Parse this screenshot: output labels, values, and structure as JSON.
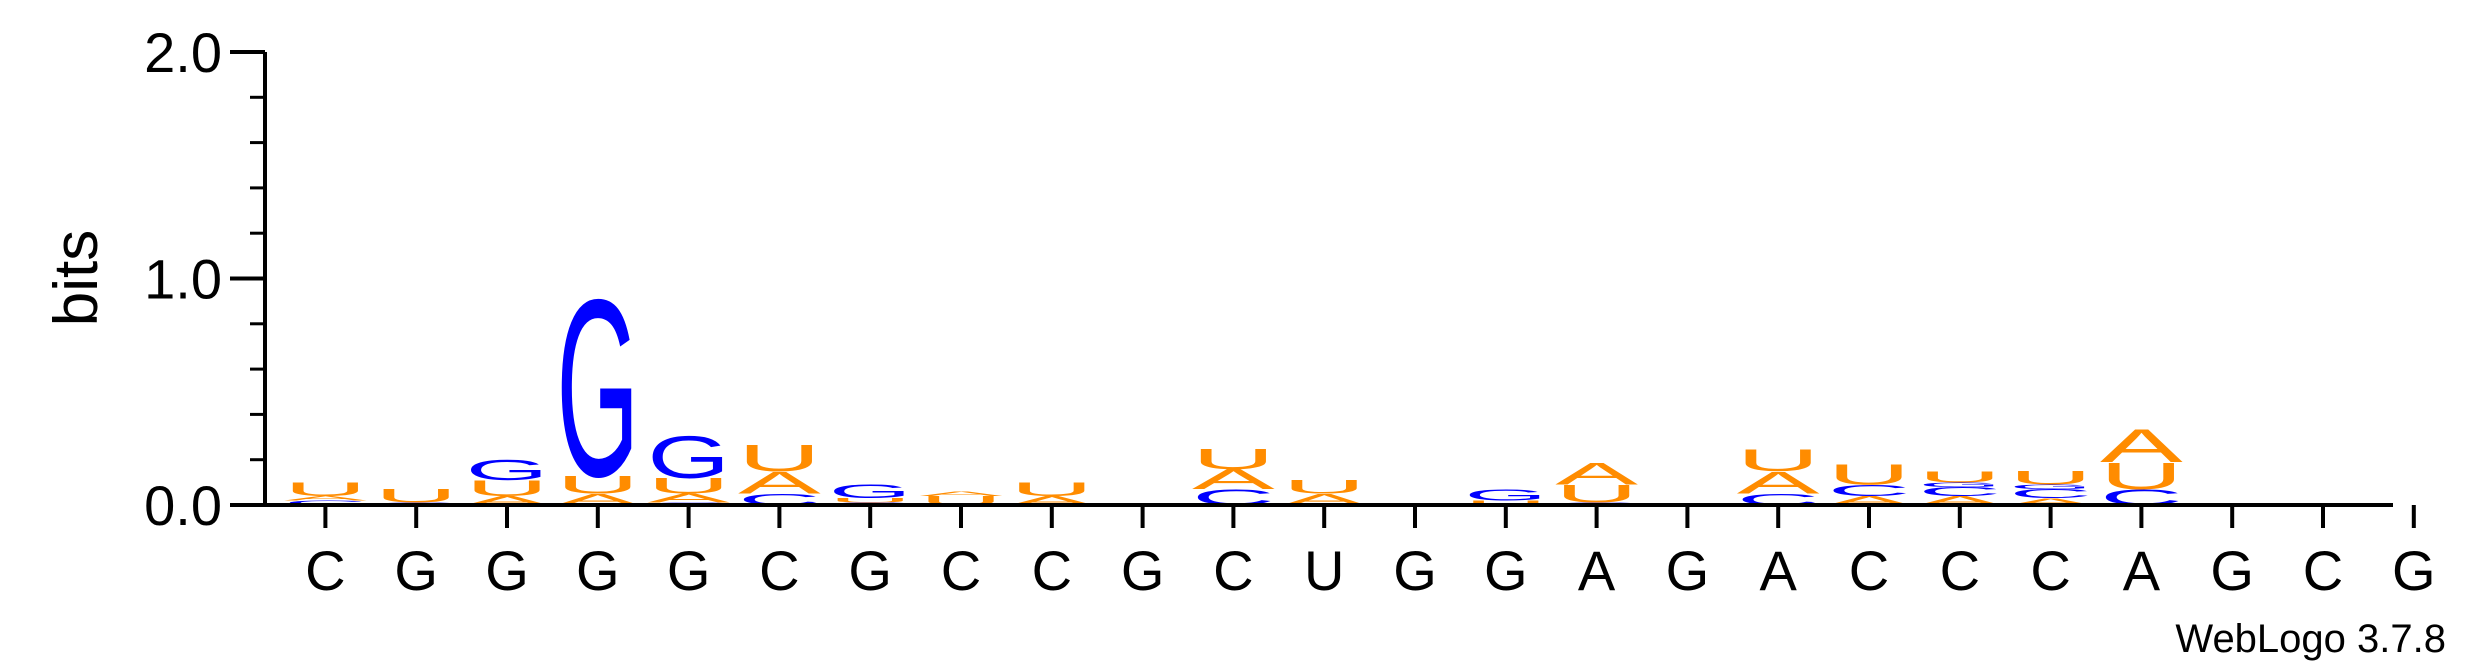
{
  "chart_data": {
    "type": "sequence-logo",
    "ylabel": "bits",
    "ylim": [
      0,
      2.0
    ],
    "yticks": [
      "0.0",
      "1.0",
      "2.0"
    ],
    "consensus": [
      "C",
      "G",
      "G",
      "G",
      "G",
      "C",
      "G",
      "C",
      "C",
      "G",
      "C",
      "U",
      "G",
      "G",
      "A",
      "G",
      "A",
      "C",
      "C",
      "C",
      "A",
      "G",
      "C",
      "G"
    ],
    "colors": {
      "A": "#ff8c00",
      "U": "#ff8c00",
      "G": "#0000ff",
      "C": "#0000ff"
    },
    "stacks": [
      [
        [
          "C",
          0.02
        ],
        [
          "A",
          0.02
        ],
        [
          "U",
          0.06
        ]
      ],
      [
        [
          "C",
          0.01
        ],
        [
          "U",
          0.06
        ]
      ],
      [
        [
          "A",
          0.04
        ],
        [
          "U",
          0.07
        ],
        [
          "G",
          0.09
        ]
      ],
      [
        [
          "A",
          0.05
        ],
        [
          "U",
          0.08
        ],
        [
          "G",
          0.8
        ]
      ],
      [
        [
          "C",
          0.01
        ],
        [
          "A",
          0.04
        ],
        [
          "U",
          0.07
        ],
        [
          "G",
          0.19
        ]
      ],
      [
        [
          "C",
          0.05
        ],
        [
          "A",
          0.1
        ],
        [
          "U",
          0.12
        ]
      ],
      [
        [
          "C",
          0.01
        ],
        [
          "U",
          0.02
        ],
        [
          "G",
          0.06
        ]
      ],
      [
        [
          "U",
          0.04
        ],
        [
          "A",
          0.02
        ]
      ],
      [
        [
          "A",
          0.04
        ],
        [
          "U",
          0.06
        ]
      ],
      [],
      [
        [
          "C",
          0.07
        ],
        [
          "A",
          0.09
        ],
        [
          "U",
          0.09
        ]
      ],
      [
        [
          "A",
          0.05
        ],
        [
          "U",
          0.06
        ]
      ],
      [],
      [
        [
          "U",
          0.02
        ],
        [
          "G",
          0.05
        ]
      ],
      [
        [
          "C",
          0.01
        ],
        [
          "U",
          0.08
        ],
        [
          "A",
          0.1
        ]
      ],
      [],
      [
        [
          "C",
          0.05
        ],
        [
          "A",
          0.1
        ],
        [
          "U",
          0.1
        ]
      ],
      [
        [
          "A",
          0.04
        ],
        [
          "C",
          0.05
        ],
        [
          "U",
          0.09
        ]
      ],
      [
        [
          "A",
          0.04
        ],
        [
          "C",
          0.04
        ],
        [
          "G",
          0.02
        ],
        [
          "U",
          0.05
        ]
      ],
      [
        [
          "A",
          0.03
        ],
        [
          "C",
          0.04
        ],
        [
          "G",
          0.02
        ],
        [
          "U",
          0.06
        ]
      ],
      [
        [
          "C",
          0.07
        ],
        [
          "U",
          0.12
        ],
        [
          "A",
          0.15
        ]
      ],
      [],
      [],
      []
    ]
  },
  "footer": {
    "credit": "WebLogo 3.7.8"
  }
}
